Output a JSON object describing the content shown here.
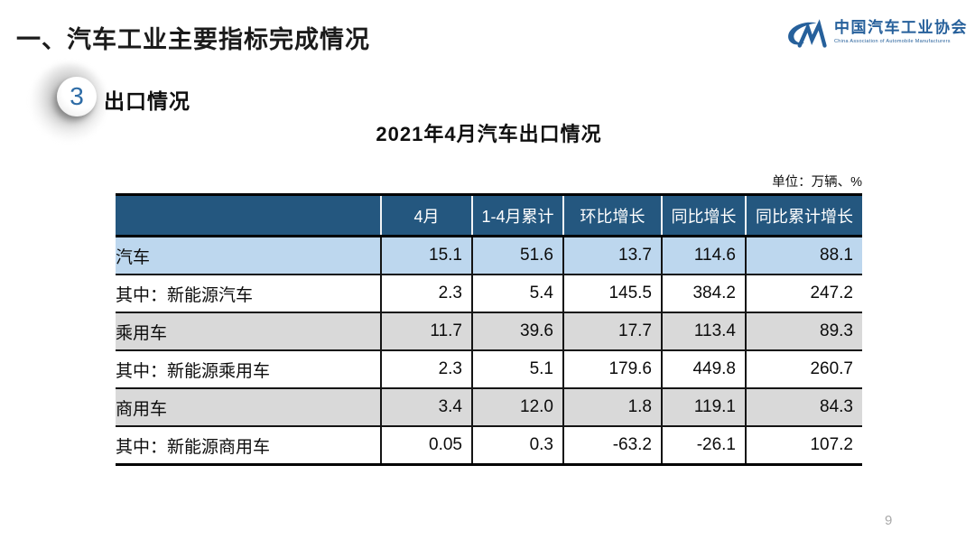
{
  "page": {
    "main_title": "一、汽车工业主要指标完成情况",
    "page_number": "9"
  },
  "logo": {
    "cn_name": "中国汽车工业协会",
    "en_name": "China Association of Automobile Manufacturers",
    "mark": "CM",
    "color": "#26609B"
  },
  "section": {
    "badge_number": "3",
    "label": "出口情况"
  },
  "table_title": "2021年4月汽车出口情况",
  "unit_label": "单位：万辆、%",
  "colors": {
    "header_bg": "#24577F",
    "header_text": "#ffffff",
    "row_blue": "#BDD7EE",
    "row_gray": "#D9D9D9",
    "grid_line": "#141414"
  },
  "chart_data": {
    "type": "table",
    "title": "2021年4月汽车出口情况",
    "unit": "单位：万辆、%"
  },
  "table": {
    "headers": [
      "",
      "4月",
      "1-4月累计",
      "环比增长",
      "同比增长",
      "同比累计增长"
    ],
    "rows": [
      {
        "label": "汽车",
        "indent": 0,
        "shade": "blue",
        "values": [
          "15.1",
          "51.6",
          "13.7",
          "114.6",
          "88.1"
        ]
      },
      {
        "label": "其中：新能源汽车",
        "indent": 1,
        "shade": "white",
        "values": [
          "2.3",
          "5.4",
          "145.5",
          "384.2",
          "247.2"
        ]
      },
      {
        "label": "乘用车",
        "indent": 1,
        "shade": "gray",
        "values": [
          "11.7",
          "39.6",
          "17.7",
          "113.4",
          "89.3"
        ]
      },
      {
        "label": "其中：新能源乘用车",
        "indent": 2,
        "shade": "white",
        "values": [
          "2.3",
          "5.1",
          "179.6",
          "449.8",
          "260.7"
        ]
      },
      {
        "label": "商用车",
        "indent": 1,
        "shade": "gray",
        "values": [
          "3.4",
          "12.0",
          "1.8",
          "119.1",
          "84.3"
        ]
      },
      {
        "label": "其中：新能源商用车",
        "indent": 2,
        "shade": "white",
        "values": [
          "0.05",
          "0.3",
          "-63.2",
          "-26.1",
          "107.2"
        ]
      }
    ]
  }
}
